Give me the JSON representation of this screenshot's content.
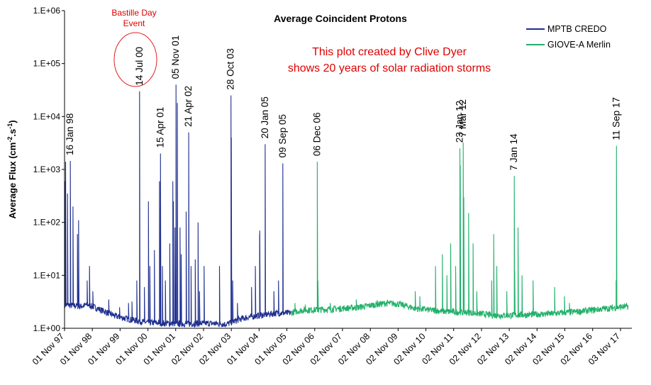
{
  "chart_data": {
    "type": "line",
    "title": "Average Coincident Protons",
    "ylabel": "Average Flux (cm⁻².s⁻¹)",
    "ylabel_parts": {
      "main": "Average Flux (cm",
      "sup1": "-2",
      "mid": ".s",
      "sup2": "-1",
      "end": ")"
    },
    "yscale": "log",
    "ylim": [
      1,
      1000000
    ],
    "y_ticks": [
      {
        "v": 1,
        "label": "1.E+00"
      },
      {
        "v": 10,
        "label": "1.E+01"
      },
      {
        "v": 100,
        "label": "1.E+02"
      },
      {
        "v": 1000,
        "label": "1.E+03"
      },
      {
        "v": 10000,
        "label": "1.E+04"
      },
      {
        "v": 100000,
        "label": "1.E+05"
      },
      {
        "v": 1000000,
        "label": "1.E+06"
      }
    ],
    "xlim": [
      "1997-11-01",
      "2018-04-01"
    ],
    "x_ticks": [
      {
        "date": "1997-11-01",
        "label": "01 Nov 97"
      },
      {
        "date": "1998-11-01",
        "label": "01 Nov 98"
      },
      {
        "date": "1999-11-01",
        "label": "01 Nov 99"
      },
      {
        "date": "2000-11-01",
        "label": "01 Nov 00"
      },
      {
        "date": "2001-11-01",
        "label": "01 Nov 01"
      },
      {
        "date": "2002-11-02",
        "label": "02 Nov 02"
      },
      {
        "date": "2003-11-02",
        "label": "02 Nov 03"
      },
      {
        "date": "2004-11-01",
        "label": "01 Nov 04"
      },
      {
        "date": "2005-11-01",
        "label": "01 Nov 05"
      },
      {
        "date": "2006-11-02",
        "label": "02 Nov 06"
      },
      {
        "date": "2007-11-02",
        "label": "02 Nov 07"
      },
      {
        "date": "2008-11-02",
        "label": "02 Nov 08"
      },
      {
        "date": "2009-11-02",
        "label": "02 Nov 09"
      },
      {
        "date": "2010-11-02",
        "label": "02 Nov 10"
      },
      {
        "date": "2011-11-02",
        "label": "02 Nov 11"
      },
      {
        "date": "2012-11-02",
        "label": "02 Nov 12"
      },
      {
        "date": "2013-11-02",
        "label": "02 Nov 13"
      },
      {
        "date": "2014-11-02",
        "label": "02 Nov 14"
      },
      {
        "date": "2015-11-02",
        "label": "02 Nov 15"
      },
      {
        "date": "2016-11-02",
        "label": "02 Nov 16"
      },
      {
        "date": "2017-11-03",
        "label": "03 Nov 17"
      }
    ],
    "legend_position": "top-right",
    "series": [
      {
        "name": "MPTB CREDO",
        "color": "#1f2f8f",
        "baseline": [
          [
            "1997-11-05",
            2.8
          ],
          [
            "1998-06-01",
            2.6
          ],
          [
            "1998-09-01",
            2.8
          ],
          [
            "1999-03-01",
            2.2
          ],
          [
            "1999-09-01",
            1.7
          ],
          [
            "2000-04-01",
            1.45
          ],
          [
            "2000-10-01",
            1.3
          ],
          [
            "2001-06-01",
            1.25
          ],
          [
            "2002-04-01",
            1.22
          ],
          [
            "2003-01-01",
            1.25
          ],
          [
            "2003-09-01",
            1.2
          ],
          [
            "2004-04-01",
            1.55
          ],
          [
            "2004-11-01",
            1.75
          ],
          [
            "2005-07-01",
            1.95
          ],
          [
            "2005-12-31",
            1.95
          ]
        ],
        "spikes": [
          [
            "1997-11-06",
            600
          ],
          [
            "1997-11-15",
            1400
          ],
          [
            "1997-12-10",
            350
          ],
          [
            "1998-01-16",
            1450
          ],
          [
            "1998-02-20",
            200
          ],
          [
            "1998-04-20",
            60
          ],
          [
            "1998-05-05",
            110
          ],
          [
            "1998-08-25",
            8
          ],
          [
            "1998-09-25",
            15
          ],
          [
            "1998-11-08",
            5
          ],
          [
            "1999-06-05",
            3.5
          ],
          [
            "1999-10-25",
            2.5
          ],
          [
            "2000-02-20",
            3
          ],
          [
            "2000-04-05",
            3.2
          ],
          [
            "2000-06-08",
            8
          ],
          [
            "2000-07-14",
            30000
          ],
          [
            "2000-09-15",
            6
          ],
          [
            "2000-11-08",
            250
          ],
          [
            "2000-11-26",
            15
          ],
          [
            "2001-01-25",
            30
          ],
          [
            "2001-04-02",
            600
          ],
          [
            "2001-04-15",
            2000
          ],
          [
            "2001-05-10",
            15
          ],
          [
            "2001-06-18",
            8
          ],
          [
            "2001-08-15",
            40
          ],
          [
            "2001-09-24",
            600
          ],
          [
            "2001-10-02",
            250
          ],
          [
            "2001-10-22",
            80
          ],
          [
            "2001-11-05",
            40000
          ],
          [
            "2001-11-23",
            18000
          ],
          [
            "2001-12-28",
            80
          ],
          [
            "2002-01-12",
            25
          ],
          [
            "2002-03-18",
            160
          ],
          [
            "2002-04-21",
            5000
          ],
          [
            "2002-05-22",
            15
          ],
          [
            "2002-07-16",
            20
          ],
          [
            "2002-08-22",
            100
          ],
          [
            "2002-09-10",
            5
          ],
          [
            "2002-11-09",
            15
          ],
          [
            "2003-05-30",
            15
          ],
          [
            "2003-10-28",
            25000
          ],
          [
            "2003-11-02",
            4000
          ],
          [
            "2003-11-20",
            8
          ],
          [
            "2004-01-21",
            3
          ],
          [
            "2004-07-25",
            6
          ],
          [
            "2004-09-13",
            15
          ],
          [
            "2004-11-08",
            60
          ],
          [
            "2004-11-10",
            70
          ],
          [
            "2005-01-20",
            3000
          ],
          [
            "2005-05-14",
            5
          ],
          [
            "2005-07-14",
            8
          ],
          [
            "2005-09-09",
            1300
          ]
        ]
      },
      {
        "name": "GIOVE-A Merlin",
        "color": "#22b06a",
        "baseline": [
          [
            "2005-12-31",
            2.0
          ],
          [
            "2006-06-01",
            2.2
          ],
          [
            "2007-06-01",
            2.3
          ],
          [
            "2008-06-01",
            2.5
          ],
          [
            "2009-06-01",
            3.0
          ],
          [
            "2009-11-01",
            2.9
          ],
          [
            "2010-06-01",
            2.4
          ],
          [
            "2011-06-01",
            2.1
          ],
          [
            "2012-06-01",
            2.0
          ],
          [
            "2012-10-01",
            1.9
          ],
          [
            "2013-06-01",
            1.75
          ],
          [
            "2014-06-01",
            1.8
          ],
          [
            "2015-06-01",
            1.9
          ],
          [
            "2016-06-01",
            2.1
          ],
          [
            "2017-06-01",
            2.4
          ],
          [
            "2018-02-15",
            2.6
          ]
        ],
        "spikes": [
          [
            "2006-02-15",
            3
          ],
          [
            "2006-07-01",
            2.8
          ],
          [
            "2006-12-06",
            1400
          ],
          [
            "2006-12-14",
            8
          ],
          [
            "2007-05-25",
            3
          ],
          [
            "2008-05-01",
            3.5
          ],
          [
            "2009-02-01",
            3.4
          ],
          [
            "2010-06-15",
            5
          ],
          [
            "2010-08-14",
            4
          ],
          [
            "2011-03-08",
            15
          ],
          [
            "2011-06-07",
            25
          ],
          [
            "2011-08-05",
            10
          ],
          [
            "2011-09-24",
            40
          ],
          [
            "2011-11-28",
            15
          ],
          [
            "2012-01-23",
            2500
          ],
          [
            "2012-01-28",
            1200
          ],
          [
            "2012-03-07",
            3200
          ],
          [
            "2012-03-14",
            300
          ],
          [
            "2012-05-17",
            150
          ],
          [
            "2012-07-14",
            40
          ],
          [
            "2012-09-01",
            5
          ],
          [
            "2013-03-15",
            8
          ],
          [
            "2013-04-11",
            60
          ],
          [
            "2013-05-22",
            15
          ],
          [
            "2013-09-30",
            5
          ],
          [
            "2014-01-07",
            750
          ],
          [
            "2014-01-12",
            12
          ],
          [
            "2014-02-25",
            80
          ],
          [
            "2014-04-18",
            10
          ],
          [
            "2014-09-11",
            8
          ],
          [
            "2015-06-21",
            6
          ],
          [
            "2015-10-29",
            4
          ],
          [
            "2016-01-02",
            3
          ],
          [
            "2017-09-06",
            8
          ],
          [
            "2017-09-11",
            2800
          ]
        ]
      }
    ],
    "annotations": [
      {
        "label": "16 Jan 98",
        "date": "1998-01-16"
      },
      {
        "label": "14 Jul 00",
        "date": "2000-07-14"
      },
      {
        "label": "15 Apr 01",
        "date": "2001-04-15"
      },
      {
        "label": "05 Nov 01",
        "date": "2001-11-05"
      },
      {
        "label": "21 Apr 02",
        "date": "2002-04-21"
      },
      {
        "label": "28 Oct 03",
        "date": "2003-10-28"
      },
      {
        "label": "20 Jan 05",
        "date": "2005-01-20"
      },
      {
        "label": "09 Sep 05",
        "date": "2005-09-09"
      },
      {
        "label": "06 Dec 06",
        "date": "2006-12-06"
      },
      {
        "label": "23 Jan 12",
        "date": "2012-01-23"
      },
      {
        "label": "7 Mar 12",
        "date": "2012-03-07"
      },
      {
        "label": "7 Jan 14",
        "date": "2014-01-07"
      },
      {
        "label": "11 Sep 17",
        "date": "2017-09-11"
      }
    ],
    "highlight_event": {
      "label_line1": "Bastille Day",
      "label_line2": "Event",
      "date": "2000-07-14"
    },
    "note_line1": "This plot created by Clive Dyer",
    "note_line2": "shows 20 years of solar radiation storms"
  }
}
